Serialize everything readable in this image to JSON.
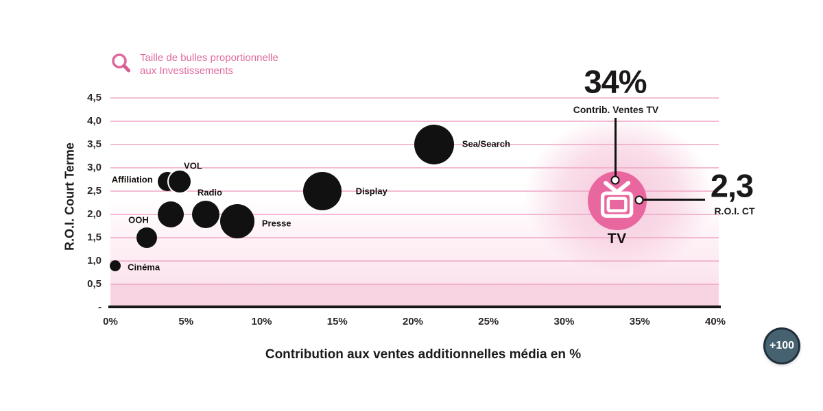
{
  "legend": {
    "icon": "magnifier-icon",
    "line1": "Taille de bulles proportionnelle",
    "line2": "aux Investissements"
  },
  "chart_data": {
    "type": "scatter",
    "subtype": "bubble",
    "note": "Bubble size proportional to investments",
    "xlabel": "Contribution aux ventes additionnelles média en %",
    "ylabel": "R.O.I. Court Terme",
    "xlim": [
      0,
      40
    ],
    "ylim": [
      0,
      4.5
    ],
    "grid": "horizontal",
    "x_ticks": [
      {
        "label": "0%",
        "value": 0
      },
      {
        "label": "5%",
        "value": 5
      },
      {
        "label": "10%",
        "value": 10
      },
      {
        "label": "15%",
        "value": 15
      },
      {
        "label": "20%",
        "value": 20
      },
      {
        "label": "25%",
        "value": 25
      },
      {
        "label": "30%",
        "value": 30
      },
      {
        "label": "35%",
        "value": 35
      },
      {
        "label": "40%",
        "value": 40
      }
    ],
    "y_ticks": [
      {
        "label": "4,5",
        "value": 4.5
      },
      {
        "label": "4,0",
        "value": 4.0
      },
      {
        "label": "3,5",
        "value": 3.5
      },
      {
        "label": "3,0",
        "value": 3.0
      },
      {
        "label": "2,5",
        "value": 2.5
      },
      {
        "label": "2,0",
        "value": 2.0
      },
      {
        "label": "1,5",
        "value": 1.5
      },
      {
        "label": "1,0",
        "value": 1.0
      },
      {
        "label": "0,5",
        "value": 0.5
      },
      {
        "label": "-",
        "value": 0
      }
    ],
    "bubbles": [
      {
        "label": "Cinéma",
        "x": 0.3,
        "y": 0.9,
        "r": 8,
        "label_offset": [
          42,
          2
        ]
      },
      {
        "label": "OOH",
        "x": 2.4,
        "y": 1.5,
        "r": 15,
        "label_offset": [
          -12,
          -26
        ]
      },
      {
        "label": "",
        "x": 4.0,
        "y": 2.0,
        "r": 19,
        "label_offset": [
          0,
          0
        ]
      },
      {
        "label": "Affiliation",
        "x": 3.75,
        "y": 2.7,
        "r": 14,
        "label_offset": [
          -51,
          -3
        ]
      },
      {
        "label": "VOL",
        "x": 4.6,
        "y": 2.7,
        "r": 16,
        "label_offset": [
          19,
          -23
        ],
        "ring": true
      },
      {
        "label": "Radio",
        "x": 6.3,
        "y": 2.0,
        "r": 20,
        "label_offset": [
          6,
          -32
        ]
      },
      {
        "label": "Presse",
        "x": 8.4,
        "y": 1.85,
        "r": 25,
        "label_offset": [
          57,
          3
        ]
      },
      {
        "label": "Display",
        "x": 14.0,
        "y": 2.5,
        "r": 28,
        "label_offset": [
          72,
          0
        ]
      },
      {
        "label": "Sea/Search",
        "x": 21.4,
        "y": 3.5,
        "r": 29,
        "label_offset": [
          76,
          -1
        ]
      },
      {
        "label": "TV",
        "x": 33.5,
        "y": 2.3,
        "r": 43,
        "label_offset": [
          0,
          56
        ],
        "highlight": true,
        "icon": "tv-icon"
      }
    ]
  },
  "annotations": {
    "contrib": {
      "value": "34%",
      "label": "Contrib. Ventes TV"
    },
    "roi": {
      "value": "2,3",
      "label": "R.O.I. CT"
    }
  },
  "badge": {
    "label": "+100"
  },
  "colors": {
    "accent_pink": "#e0699e",
    "tv_bubble_pink": "#e9679f",
    "bubble_black": "#111111",
    "gridline_pink": "#efa6c5",
    "band_pink": "#f8d3e1",
    "glow_pink": "#f5c4d9",
    "axis_line": "#19161a",
    "text_dark": "#1d1a1b",
    "badge_fill": "#46616f",
    "badge_border": "#212f3b",
    "badge_text": "#ffffff"
  }
}
